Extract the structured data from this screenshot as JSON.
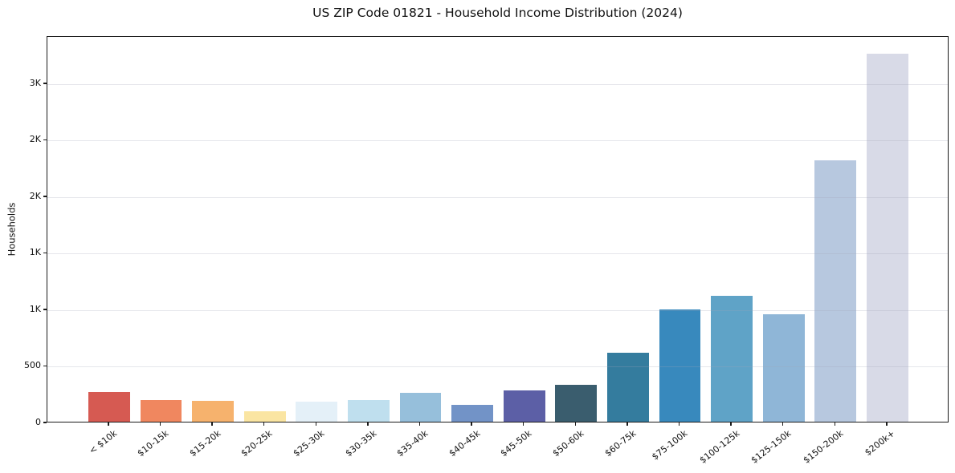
{
  "chart_data": {
    "type": "bar",
    "title": "US ZIP Code 01821 - Household Income Distribution (2024)",
    "xlabel": "",
    "ylabel": "Households",
    "ylim": [
      0,
      3418
    ],
    "grid": "horizontal-only, light gray, drawn over bars",
    "legend": "none",
    "frame": "full box, black spines",
    "categories": [
      "< $10k",
      "$10-15k",
      "$15-20k",
      "$20-25k",
      "$25-30k",
      "$30-35k",
      "$35-40k",
      "$40-45k",
      "$45-50k",
      "$50-60k",
      "$60-75k",
      "$75-100k",
      "$100-125k",
      "$125-150k",
      "$150-200k",
      "$200k+"
    ],
    "values": [
      260,
      190,
      183,
      94,
      176,
      190,
      254,
      152,
      280,
      324,
      607,
      990,
      1110,
      952,
      2310,
      3255
    ],
    "bar_colors": [
      "#d65a52",
      "#f0875f",
      "#f6b26d",
      "#fae5a2",
      "#e4f0f8",
      "#bfdfee",
      "#96bfdb",
      "#7293c7",
      "#5c5fa6",
      "#3a5d6e",
      "#347c9e",
      "#3889bd",
      "#5fa3c7",
      "#8fb6d7",
      "#b7c8df",
      "#d8dae7"
    ],
    "yticks": [
      {
        "value": 0,
        "label": "0"
      },
      {
        "value": 500,
        "label": "500"
      },
      {
        "value": 1000,
        "label": "1K"
      },
      {
        "value": 1500,
        "label": "1K"
      },
      {
        "value": 2000,
        "label": "2K"
      },
      {
        "value": 2500,
        "label": "2K"
      },
      {
        "value": 3000,
        "label": "3K"
      }
    ]
  },
  "colors": {
    "background": "#ffffff",
    "spine": "#1a1a1a",
    "text": "#111111",
    "gridline": "rgba(160,166,182,0.28)"
  }
}
